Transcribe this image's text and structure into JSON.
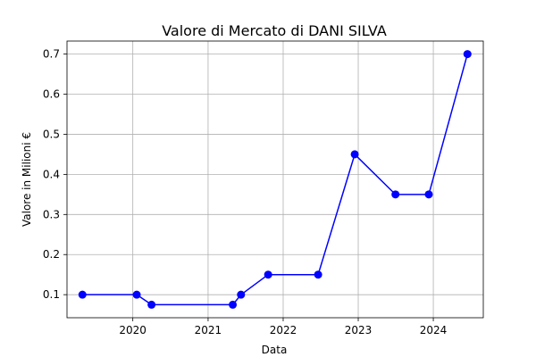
{
  "chart_data": {
    "type": "line",
    "title": "Valore di Mercato di DANI SILVA",
    "xlabel": "Data",
    "ylabel": "Valore in Milioni €",
    "x": [
      "2019-05-01",
      "2020-01-20",
      "2020-04-01",
      "2021-05-01",
      "2021-06-10",
      "2021-10-20",
      "2022-06-20",
      "2022-12-15",
      "2023-07-01",
      "2023-12-10",
      "2024-06-15"
    ],
    "values": [
      0.1,
      0.1,
      0.075,
      0.075,
      0.1,
      0.15,
      0.15,
      0.45,
      0.35,
      0.35,
      0.7
    ],
    "xlim": [
      "2019-02-15",
      "2024-08-31"
    ],
    "ylim": [
      0.0425,
      0.7325
    ],
    "x_ticks": [
      "2020-01-01",
      "2021-01-01",
      "2022-01-01",
      "2023-01-01",
      "2024-01-01"
    ],
    "x_tick_labels": [
      "2020",
      "2021",
      "2022",
      "2023",
      "2024"
    ],
    "y_ticks": [
      0.1,
      0.2,
      0.3,
      0.4,
      0.5,
      0.6,
      0.7
    ],
    "y_tick_labels": [
      "0.1",
      "0.2",
      "0.3",
      "0.4",
      "0.5",
      "0.6",
      "0.7"
    ],
    "grid": true,
    "line_color": "#0000ff",
    "marker": "circle"
  }
}
